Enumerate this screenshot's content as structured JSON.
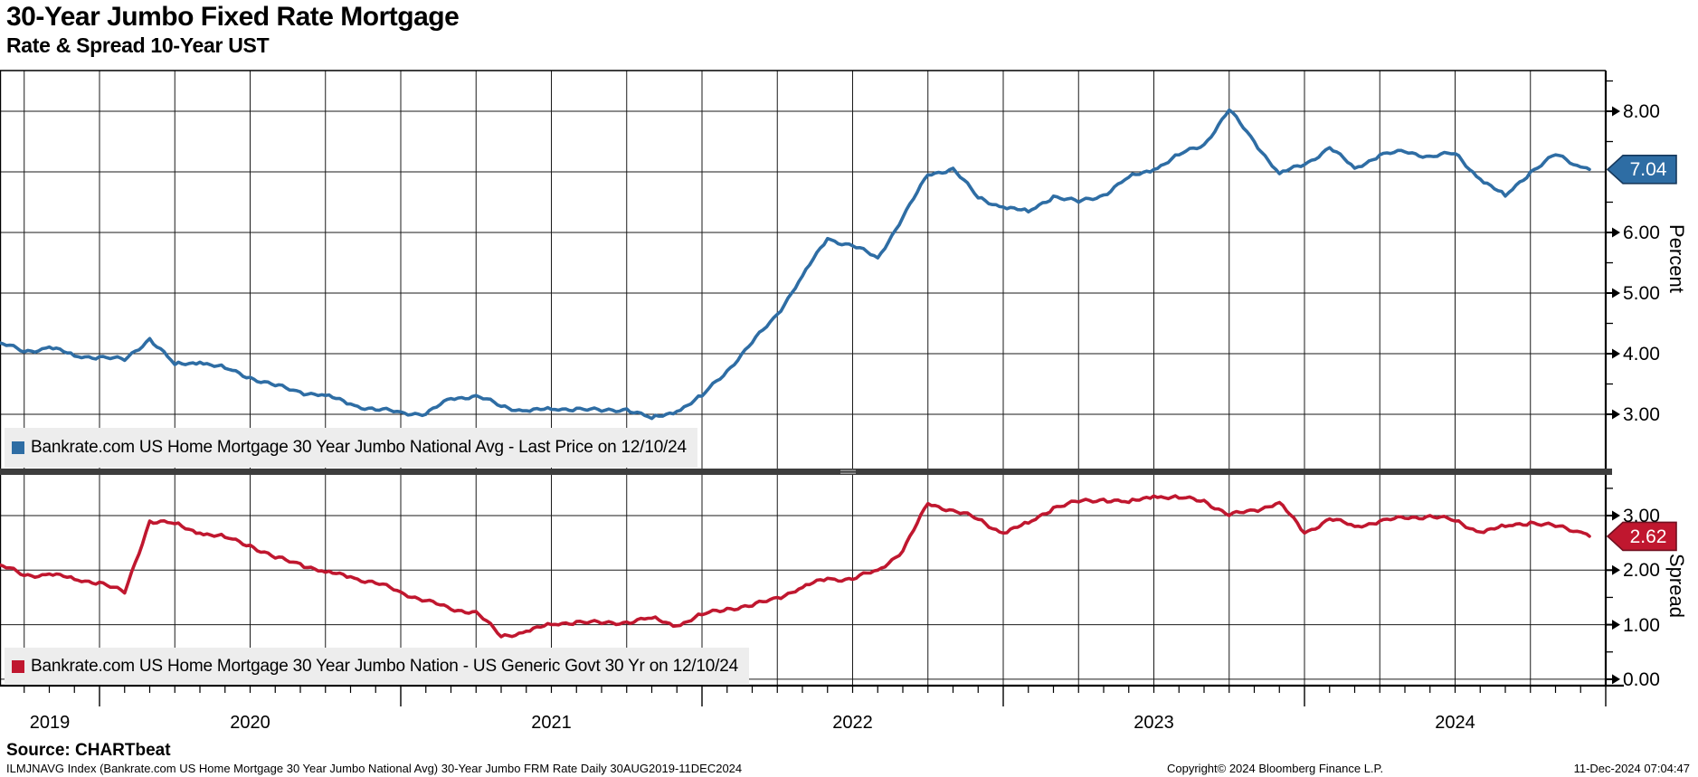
{
  "title": "30-Year Jumbo Fixed Rate Mortgage",
  "subtitle": "Rate & Spread 10-Year UST",
  "colors": {
    "rate_line": "#2e6da4",
    "rate_badge_fill": "#2e6da4",
    "rate_badge_border": "#16385c",
    "spread_line": "#c0172f",
    "spread_badge_fill": "#c0172f",
    "spread_badge_border": "#701020",
    "gridline": "#1a1a1a",
    "separator": "#3d3d3d",
    "legend_bg": "#ededed"
  },
  "panels": {
    "rate": {
      "axis_title": "Percent",
      "tick_labels": [
        "8.00",
        "6.00",
        "5.00",
        "4.00",
        "3.00"
      ],
      "tick_values": [
        8.0,
        6.0,
        5.0,
        4.0,
        3.0
      ],
      "minor_tick_values": [
        8.5,
        7.5,
        6.5,
        5.5,
        4.5,
        3.5
      ],
      "last_price_label": "7.04",
      "last_price_value": 7.04,
      "legend": "Bankrate.com US Home Mortgage 30 Year Jumbo National Avg - Last Price on 12/10/24"
    },
    "spread": {
      "axis_title": "Spread",
      "tick_labels": [
        "3.00",
        "2.00",
        "1.00",
        "0.00"
      ],
      "tick_values": [
        3.0,
        2.0,
        1.0,
        0.0
      ],
      "minor_tick_values": [
        3.5,
        1.5,
        0.5
      ],
      "last_price_label": "2.62",
      "last_price_value": 2.62,
      "legend": "Bankrate.com US Home Mortgage 30 Year Jumbo Nation - US Generic Govt 30 Yr on 12/10/24"
    }
  },
  "x_axis": {
    "year_labels": [
      "2019",
      "2020",
      "2021",
      "2022",
      "2023",
      "2024"
    ]
  },
  "footer": {
    "source": "Source: CHARTbeat",
    "description": "ILMJNAVG Index (Bankrate.com US Home Mortgage 30 Year Jumbo National Avg) 30-Year Jumbo FRM Rate  Daily 30AUG2019-11DEC2024",
    "copyright": "Copyright© 2024 Bloomberg Finance L.P.",
    "timestamp": "11-Dec-2024 07:04:47"
  },
  "chart_data": [
    {
      "type": "line",
      "name": "Bankrate.com US Home Mortgage 30 Year Jumbo National Avg",
      "panel": "rate",
      "ylabel": "Percent",
      "ylim": [
        2.1,
        8.7
      ],
      "yticks": [
        3,
        4,
        5,
        6,
        7,
        8
      ],
      "x_months": [
        "2019-09",
        "2019-10",
        "2019-11",
        "2019-12",
        "2020-01",
        "2020-02",
        "2020-03",
        "2020-04",
        "2020-05",
        "2020-06",
        "2020-07",
        "2020-08",
        "2020-09",
        "2020-10",
        "2020-11",
        "2020-12",
        "2021-01",
        "2021-02",
        "2021-03",
        "2021-04",
        "2021-05",
        "2021-06",
        "2021-07",
        "2021-08",
        "2021-09",
        "2021-10",
        "2021-11",
        "2021-12",
        "2022-01",
        "2022-02",
        "2022-03",
        "2022-04",
        "2022-05",
        "2022-06",
        "2022-07",
        "2022-08",
        "2022-09",
        "2022-10",
        "2022-11",
        "2022-12",
        "2023-01",
        "2023-02",
        "2023-03",
        "2023-04",
        "2023-05",
        "2023-06",
        "2023-07",
        "2023-08",
        "2023-09",
        "2023-10",
        "2023-11",
        "2023-12",
        "2024-01",
        "2024-02",
        "2024-03",
        "2024-04",
        "2024-05",
        "2024-06",
        "2024-07",
        "2024-08",
        "2024-09",
        "2024-10",
        "2024-11",
        "2024-12"
      ],
      "values": [
        4.18,
        4.03,
        4.11,
        3.96,
        3.95,
        3.89,
        4.25,
        3.82,
        3.86,
        3.76,
        3.61,
        3.47,
        3.37,
        3.31,
        3.17,
        3.07,
        3.04,
        3.0,
        3.26,
        3.31,
        3.13,
        3.06,
        3.08,
        3.1,
        3.05,
        3.09,
        2.93,
        3.05,
        3.3,
        3.72,
        4.18,
        4.65,
        5.28,
        5.9,
        5.78,
        5.58,
        6.25,
        6.95,
        7.06,
        6.57,
        6.42,
        6.34,
        6.6,
        6.5,
        6.62,
        6.91,
        7.04,
        7.28,
        7.45,
        8.02,
        7.5,
        6.97,
        7.12,
        7.4,
        7.06,
        7.28,
        7.33,
        7.26,
        7.3,
        6.88,
        6.6,
        7.0,
        7.28,
        7.08
      ],
      "last_point": {
        "date": "2024-12-11",
        "value": 7.04
      }
    },
    {
      "type": "line",
      "name": "Bankrate.com US Home Mortgage 30 Year Jumbo Nation - US Generic Govt 30 Yr",
      "panel": "spread",
      "ylabel": "Spread",
      "ylim": [
        -0.2,
        3.75
      ],
      "yticks": [
        0,
        1,
        2,
        3
      ],
      "x_months": [
        "2019-09",
        "2019-10",
        "2019-11",
        "2019-12",
        "2020-01",
        "2020-02",
        "2020-03",
        "2020-04",
        "2020-05",
        "2020-06",
        "2020-07",
        "2020-08",
        "2020-09",
        "2020-10",
        "2020-11",
        "2020-12",
        "2021-01",
        "2021-02",
        "2021-03",
        "2021-04",
        "2021-05",
        "2021-06",
        "2021-07",
        "2021-08",
        "2021-09",
        "2021-10",
        "2021-11",
        "2021-12",
        "2022-01",
        "2022-02",
        "2022-03",
        "2022-04",
        "2022-05",
        "2022-06",
        "2022-07",
        "2022-08",
        "2022-09",
        "2022-10",
        "2022-11",
        "2022-12",
        "2023-01",
        "2023-02",
        "2023-03",
        "2023-04",
        "2023-05",
        "2023-06",
        "2023-07",
        "2023-08",
        "2023-09",
        "2023-10",
        "2023-11",
        "2023-12",
        "2024-01",
        "2024-02",
        "2024-03",
        "2024-04",
        "2024-05",
        "2024-06",
        "2024-07",
        "2024-08",
        "2024-09",
        "2024-10",
        "2024-11",
        "2024-12"
      ],
      "values": [
        2.1,
        1.9,
        1.93,
        1.83,
        1.78,
        1.58,
        2.9,
        2.85,
        2.68,
        2.6,
        2.46,
        2.22,
        2.12,
        1.96,
        1.88,
        1.76,
        1.6,
        1.44,
        1.28,
        1.24,
        0.78,
        0.88,
        1.0,
        1.06,
        1.02,
        1.05,
        1.12,
        0.98,
        1.18,
        1.3,
        1.34,
        1.5,
        1.68,
        1.85,
        1.83,
        2.0,
        2.35,
        3.22,
        3.1,
        2.93,
        2.68,
        2.86,
        3.15,
        3.25,
        3.3,
        3.24,
        3.36,
        3.32,
        3.28,
        3.0,
        3.1,
        3.24,
        2.68,
        2.94,
        2.8,
        2.9,
        2.95,
        3.0,
        2.9,
        2.7,
        2.8,
        2.88,
        2.8,
        2.7
      ],
      "last_point": {
        "date": "2024-12-11",
        "value": 2.62
      }
    }
  ]
}
